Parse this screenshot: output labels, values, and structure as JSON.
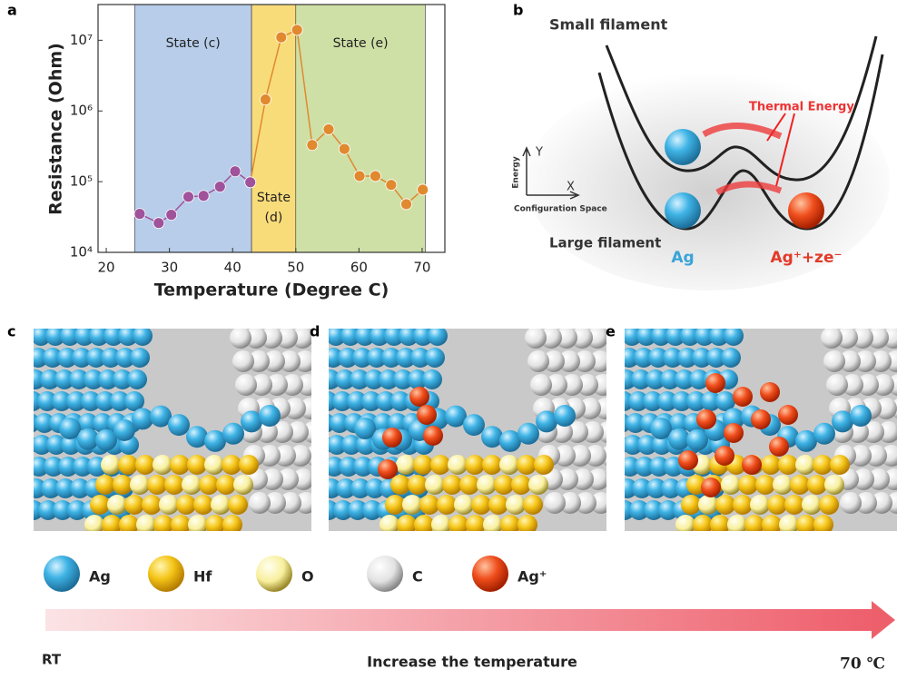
{
  "chart_data": {
    "type": "line",
    "panel": "a",
    "x_label": "Temperature (Degree C)",
    "y_label": "Resistance (Ohm)",
    "xlim": [
      18.7,
      73.6
    ],
    "xticks": [
      20,
      30,
      40,
      50,
      60,
      70
    ],
    "ylim": [
      10000,
      32000000
    ],
    "log_y": true,
    "yticks": [
      {
        "value": 10000,
        "label": "10⁴"
      },
      {
        "value": 100000,
        "label": "10⁵"
      },
      {
        "value": 1000000,
        "label": "10⁶"
      },
      {
        "value": 10000000,
        "label": "10⁷"
      }
    ],
    "regions": [
      {
        "x0": 24.5,
        "x1": 43,
        "color": "#b7cdea",
        "label_lines": [
          "State (c)"
        ]
      },
      {
        "x0": 43,
        "x1": 50,
        "color": "#f9dc7a",
        "label_lines": [
          "State",
          "(d)"
        ]
      },
      {
        "x0": 50,
        "x1": 70.5,
        "color": "#cfe0a6",
        "label_lines": [
          "State (e)"
        ]
      }
    ],
    "x": [
      25.3,
      28.3,
      30.3,
      33,
      35.4,
      38,
      40.4,
      42.8,
      45.2,
      47.7,
      50.2,
      52.6,
      55.2,
      57.7,
      60.1,
      62.6,
      65.1,
      67.5,
      70.1
    ],
    "values": [
      35000,
      26000,
      34000,
      61000,
      63000,
      85000,
      140000,
      98000,
      1450000,
      11000000,
      14000000,
      330000,
      550000,
      290000,
      120000,
      120000,
      90000,
      48000,
      77000
    ],
    "point_colors": [
      "#a0529a",
      "#a0529a",
      "#a0529a",
      "#a0529a",
      "#a0529a",
      "#a0529a",
      "#a0529a",
      "#a0529a",
      "#e0892e",
      "#e0892e",
      "#e0892e",
      "#e0892e",
      "#e0892e",
      "#e0892e",
      "#e0892e",
      "#e0892e",
      "#e0892e",
      "#e0892e",
      "#e0892e"
    ]
  },
  "panels": {
    "a": "a",
    "b": "b",
    "c": "c",
    "d": "d",
    "e": "e"
  },
  "diagram_b": {
    "small": "Small filament",
    "large": "Large filament",
    "thermal": "Thermal Energy",
    "energy": "Energy",
    "y": "Y",
    "x": "X",
    "config": "Configuration Space",
    "ag": "Ag",
    "ag_ion": "Ag⁺+ze⁻"
  },
  "legend": [
    "Ag",
    "Hf",
    "O",
    "C",
    "Ag⁺"
  ],
  "footer": {
    "left": "RT",
    "middle": "Increase the temperature",
    "right": "70 ℃"
  }
}
